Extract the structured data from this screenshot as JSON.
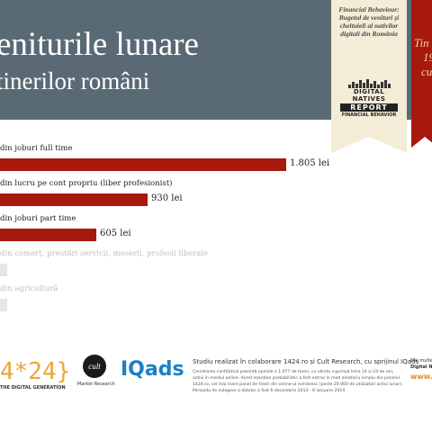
{
  "header": {
    "title_line1": "eniturile lunare",
    "title_line2": "tinerilor români"
  },
  "ribbon": {
    "subtitle": "Financial Behaviour: Bugetul de venituri și cheltuieli al nativilor digitali din România",
    "logo_line1": "DIGITAL NATIVES",
    "logo_line2": "REPORT",
    "logo_line3": "FINANCIAL BEHAVIOR",
    "side_text_1": "Tin",
    "side_text_2": "19",
    "side_text_3": "cu"
  },
  "colors": {
    "bar": "#a7180f",
    "header": "#5a6a74",
    "muted_bar": "#e6e6e6"
  },
  "chart_data": {
    "type": "bar",
    "orientation": "horizontal",
    "categories": [
      "din joburi full time",
      "din lucru pe cont propriu (liber profesionist)",
      "din joburi part time",
      "din comerț, prestări servicii, meserii, profesii liberale",
      "din agricultură"
    ],
    "values": [
      1805,
      930,
      605,
      null,
      null
    ],
    "value_labels": [
      "1.805 lei",
      "930 lei",
      "605 lei",
      "",
      ""
    ],
    "muted": [
      false,
      false,
      false,
      true,
      true
    ],
    "title": "",
    "xlabel": "",
    "ylabel": "",
    "xlim": [
      0,
      1900
    ],
    "grid": false
  },
  "footer": {
    "logo_1424": "4*24}",
    "tagline": "THE DIGITAL GENERATION",
    "cult_logo": "cult",
    "cult_sub": "Market Research",
    "iqads": "IQads",
    "study_title": "Studiu realizat în colaborare 1424.ro și Cult Research, cu sprijinul IQads",
    "study_desc": "Cercetarea cantitativă prezintă opiniile a 1.077 de tineri, cu vârsta cuprinsă între 14 și 24 de ani, activi în mediul online. Acest eșantion probabilistic a fost extras în mod aleatoriu simplu din panelul 1424.ro, cel mai mare panel de tineri din online-ul românesc (peste 20.000 de utilizatori activi lunar). Perioada de culegere a datelor a fost 6 decembrie 2013 - 6 ianuarie 2014",
    "more_line1": "Mai multe",
    "more_line2": "Digital Na",
    "more_orange": "www.142"
  }
}
